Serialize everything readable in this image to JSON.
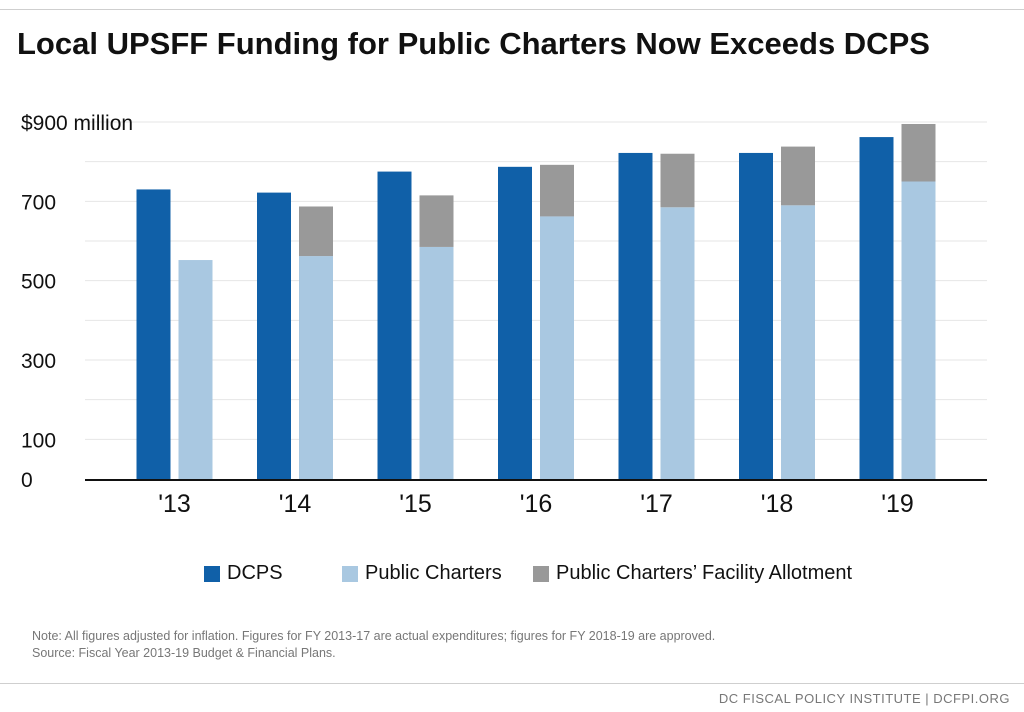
{
  "title": "Local UPSFF Funding for Public Charters Now Exceeds DCPS",
  "chart_data": {
    "type": "bar",
    "stacked_groups": true,
    "categories": [
      "'13",
      "'14",
      "'15",
      "'16",
      "'17",
      "'18",
      "'19"
    ],
    "series": [
      {
        "name": "DCPS",
        "color": "#1060a8",
        "values": [
          730,
          722,
          775,
          787,
          822,
          822,
          862
        ]
      },
      {
        "name": "Public Charters",
        "color": "#a9c8e1",
        "values": [
          552,
          562,
          585,
          662,
          685,
          690,
          750
        ]
      },
      {
        "name": "Public Charters’ Facility Allotment",
        "color": "#999999",
        "values": [
          0,
          125,
          130,
          130,
          135,
          148,
          145
        ]
      }
    ],
    "y_ticks": [
      {
        "value": 900,
        "label": "$900 million"
      },
      {
        "value": 700,
        "label": "700"
      },
      {
        "value": 500,
        "label": "500"
      },
      {
        "value": 300,
        "label": "300"
      },
      {
        "value": 100,
        "label": "100"
      },
      {
        "value": 0,
        "label": "0"
      }
    ],
    "ylim": [
      0,
      900
    ],
    "grid": true,
    "legend_position": "bottom"
  },
  "note_lines": [
    "Note: All figures adjusted for inflation. Figures for FY 2013-17 are actual expenditures; figures for FY 2018-19 are approved.",
    "Source: Fiscal Year 2013-19 Budget & Financial Plans."
  ],
  "footer": "DC FISCAL POLICY INSTITUTE | DCFPI.ORG"
}
